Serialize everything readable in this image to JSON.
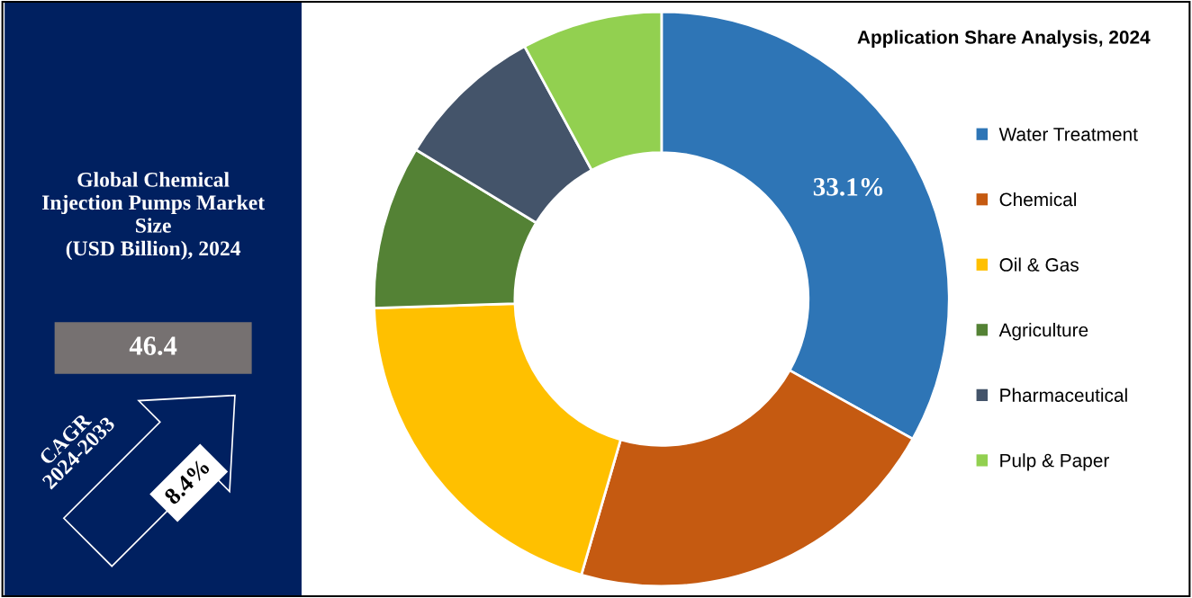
{
  "chart_data": [
    {
      "type": "other",
      "title": "Global Chemical\nInjection Pumps Market\nSize\n(USD Billion), 2024",
      "annotations": [
        "46.4",
        "CAGR\n2024-2033",
        "8.4%"
      ]
    },
    {
      "type": "donut",
      "title": "Application Share Analysis, 2024",
      "categories": [
        "Water Treatment",
        "Chemical",
        "Oil & Gas",
        "Agriculture",
        "Pharmaceutical",
        "Pulp & Paper"
      ],
      "values": [
        33.1,
        21.4,
        20.0,
        9.2,
        8.4,
        7.9
      ],
      "colors": [
        "#2e75b6",
        "#c55a11",
        "#ffc000",
        "#548235",
        "#44546a",
        "#92d050"
      ],
      "value_labels": [
        "33.1%",
        null,
        null,
        null,
        null,
        null
      ],
      "legend": "right"
    }
  ]
}
